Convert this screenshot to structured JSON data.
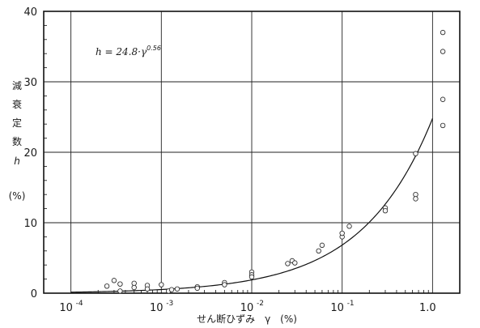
{
  "chart_data": {
    "type": "scatter",
    "formula": {
      "text": "h =  24.8·γ",
      "exponent": "0.56"
    },
    "xlabel": "せん断ひずみ　γ　(%)",
    "ylabel_chars": [
      "減",
      "衰",
      "定",
      "数",
      "h",
      "",
      "(%)"
    ],
    "x_scale": "log",
    "xlim": [
      5e-05,
      2.0
    ],
    "ylim": [
      0,
      40
    ],
    "x_ticks": [
      {
        "value": 0.0001,
        "base": "10",
        "exp": "-4"
      },
      {
        "value": 0.001,
        "base": "10",
        "exp": "-3"
      },
      {
        "value": 0.01,
        "base": "10",
        "exp": "-2"
      },
      {
        "value": 0.1,
        "base": "10",
        "exp": "-1"
      },
      {
        "value": 1.0,
        "base": "1.0",
        "exp": ""
      }
    ],
    "y_ticks": [
      {
        "value": 0,
        "label": "0"
      },
      {
        "value": 10,
        "label": "10"
      },
      {
        "value": 20,
        "label": "20"
      },
      {
        "value": 30,
        "label": "30"
      },
      {
        "value": 40,
        "label": "40"
      }
    ],
    "grid": true,
    "fit_curve": {
      "coefficient": 24.8,
      "exponent": 0.56,
      "x_range": [
        0.0001,
        1.0
      ]
    },
    "points": [
      {
        "x": 0.00025,
        "y": 1.0
      },
      {
        "x": 0.0003,
        "y": 1.8
      },
      {
        "x": 0.00035,
        "y": 1.3
      },
      {
        "x": 0.00035,
        "y": 0.3
      },
      {
        "x": 0.0005,
        "y": 1.4
      },
      {
        "x": 0.0005,
        "y": 0.8
      },
      {
        "x": 0.0007,
        "y": 1.1
      },
      {
        "x": 0.0007,
        "y": 0.6
      },
      {
        "x": 0.001,
        "y": 1.2
      },
      {
        "x": 0.0012,
        "y": 0.3
      },
      {
        "x": 0.0013,
        "y": 0.5
      },
      {
        "x": 0.0015,
        "y": 0.6
      },
      {
        "x": 0.0025,
        "y": 0.9
      },
      {
        "x": 0.0025,
        "y": 0.7
      },
      {
        "x": 0.005,
        "y": 1.5
      },
      {
        "x": 0.005,
        "y": 1.2
      },
      {
        "x": 0.01,
        "y": 3.0
      },
      {
        "x": 0.01,
        "y": 2.6
      },
      {
        "x": 0.01,
        "y": 2.3
      },
      {
        "x": 0.025,
        "y": 4.2
      },
      {
        "x": 0.028,
        "y": 4.6
      },
      {
        "x": 0.03,
        "y": 4.3
      },
      {
        "x": 0.055,
        "y": 6.0
      },
      {
        "x": 0.06,
        "y": 6.8
      },
      {
        "x": 0.1,
        "y": 8.0
      },
      {
        "x": 0.1,
        "y": 8.5
      },
      {
        "x": 0.12,
        "y": 9.5
      },
      {
        "x": 0.3,
        "y": 12.1
      },
      {
        "x": 0.3,
        "y": 11.7
      },
      {
        "x": 0.65,
        "y": 19.8
      },
      {
        "x": 0.65,
        "y": 14.0
      },
      {
        "x": 0.65,
        "y": 13.4
      },
      {
        "x": 1.3,
        "y": 37.0
      },
      {
        "x": 1.3,
        "y": 34.3
      },
      {
        "x": 1.3,
        "y": 27.5
      },
      {
        "x": 1.3,
        "y": 23.8
      }
    ]
  }
}
